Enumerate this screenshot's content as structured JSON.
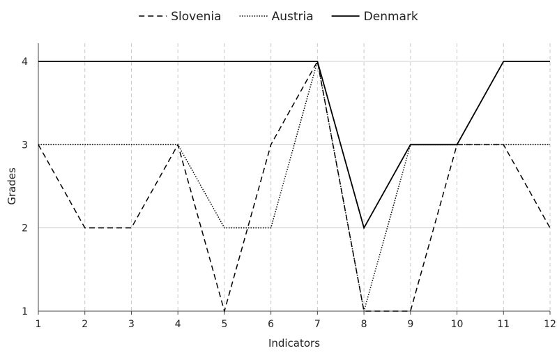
{
  "chart_data": {
    "type": "line",
    "title": "",
    "xlabel": "Indicators",
    "ylabel": "Grades",
    "x": [
      1,
      2,
      3,
      4,
      5,
      6,
      7,
      8,
      9,
      10,
      11,
      12
    ],
    "xlim": [
      1,
      12
    ],
    "ylim": [
      1,
      4
    ],
    "yticks": [
      1,
      2,
      3,
      4
    ],
    "grid": {
      "x": "dashed",
      "y": "solid"
    },
    "legend_position": "top-center",
    "series": [
      {
        "name": "Slovenia",
        "style": "dashed",
        "color": "#000000",
        "values": [
          3,
          2,
          2,
          3,
          1,
          3,
          4,
          1,
          1,
          3,
          3,
          2
        ]
      },
      {
        "name": "Austria",
        "style": "dotted",
        "color": "#000000",
        "values": [
          3,
          3,
          3,
          3,
          2,
          2,
          4,
          1,
          3,
          3,
          3,
          3
        ]
      },
      {
        "name": "Denmark",
        "style": "solid",
        "color": "#000000",
        "values": [
          4,
          4,
          4,
          4,
          4,
          4,
          4,
          2,
          3,
          3,
          4,
          4
        ]
      }
    ]
  }
}
